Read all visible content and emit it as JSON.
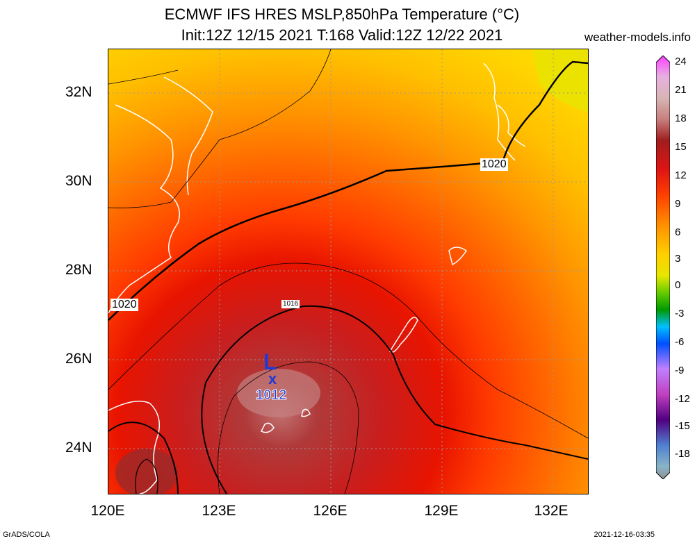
{
  "header": {
    "title_line1": "ECMWF IFS HRES MSLP,850hPa Temperature (°C)",
    "title_line2": "Init:12Z 12/15 2021 T:168 Valid:12Z 12/22 2021",
    "site": "weather-models.info"
  },
  "map": {
    "lat_labels": [
      "32N",
      "30N",
      "28N",
      "26N",
      "24N"
    ],
    "lon_labels": [
      "120E",
      "123E",
      "126E",
      "129E",
      "132E"
    ],
    "isobar_labels": [
      "1020",
      "1020",
      "1016"
    ],
    "low": {
      "symbol": "L",
      "marker": "x",
      "pressure": "1012"
    }
  },
  "colorbar": {
    "ticks": [
      "24",
      "21",
      "18",
      "15",
      "12",
      "9",
      "6",
      "3",
      "0",
      "-3",
      "-6",
      "-9",
      "-12",
      "-15",
      "-18"
    ]
  },
  "footer": {
    "left": "GrADS/COLA",
    "right": "2021-12-16-03:35"
  },
  "colors": {
    "warm_red": "#ff1400",
    "orange": "#ff8c00",
    "yellow": "#ffd000",
    "dark_red": "#b01e1e"
  }
}
